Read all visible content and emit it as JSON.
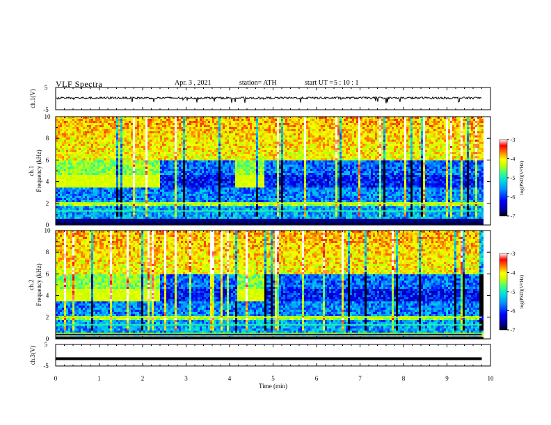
{
  "header": {
    "title": "VLF  Spectra",
    "date": "Apr. 3  , 2021",
    "station": "station= ATH",
    "start_label": "start  UT  =",
    "start_time": "5  : 10 : 1"
  },
  "chart_data": [
    {
      "type": "line",
      "panel": "ch1-waveform",
      "ylabel": "ch.1(V)",
      "ylim": [
        -5,
        5
      ],
      "ytick_labels": [
        "5",
        "-5"
      ],
      "x_range_min": [
        0,
        9.8
      ],
      "series": [
        {
          "values_note_free": true,
          "baseline": 0.3,
          "noise_amplitude": 0.9
        }
      ]
    },
    {
      "type": "heatmap",
      "panel": "ch1-spectrogram",
      "ylabel_lines": [
        "ch.1",
        "Frequency  (kHz)"
      ],
      "ylim": [
        0,
        10
      ],
      "ytick_labels": [
        "0",
        "2",
        "4",
        "6",
        "8",
        "10"
      ],
      "x_range_min": [
        0,
        9.8
      ],
      "colorbar": {
        "label": "log(PSD)(V²/Hz)",
        "range": [
          -7,
          -3
        ],
        "tick_labels": [
          "-7",
          "-6",
          "-5",
          "-4",
          "-3"
        ]
      },
      "colormap": [
        "#000000",
        "#000080",
        "#0000ff",
        "#0090ff",
        "#00e0e0",
        "#40ff80",
        "#c0ff00",
        "#ffff00",
        "#ff8000",
        "#ff0000",
        "#ffffff"
      ],
      "band_4khz_quiet_intervals_min": [
        [
          2.4,
          4.1
        ],
        [
          4.8,
          9.8
        ]
      ]
    },
    {
      "type": "heatmap",
      "panel": "ch2-spectrogram",
      "ylabel_lines": [
        "ch.2",
        "Frequency  (kHz)"
      ],
      "ylim": [
        0,
        10
      ],
      "ytick_labels": [
        "0",
        "2",
        "4",
        "6",
        "8",
        "10"
      ],
      "x_range_min": [
        0,
        9.8
      ],
      "colorbar": {
        "label": "log(PSD)(V²/Hz)",
        "range": [
          -7,
          -3
        ],
        "tick_labels": [
          "-7",
          "-6",
          "-5",
          "-4",
          "-3"
        ]
      },
      "band_4khz_quiet_intervals_min": [
        [
          2.4,
          4.1
        ],
        [
          4.8,
          9.8
        ]
      ]
    },
    {
      "type": "line",
      "panel": "ch3-waveform",
      "ylabel": "ch.3(V)",
      "ylim": [
        -5,
        5
      ],
      "ytick_labels": [
        "5",
        "-5"
      ],
      "x_range_min": [
        0,
        9.8
      ],
      "series": [
        {
          "constant": -1.6
        }
      ]
    }
  ],
  "xaxis": {
    "label": "Time  (min)",
    "range": [
      0,
      10
    ],
    "tick_labels": [
      "0",
      "1",
      "2",
      "3",
      "4",
      "5",
      "6",
      "7",
      "8",
      "9",
      "10"
    ]
  }
}
